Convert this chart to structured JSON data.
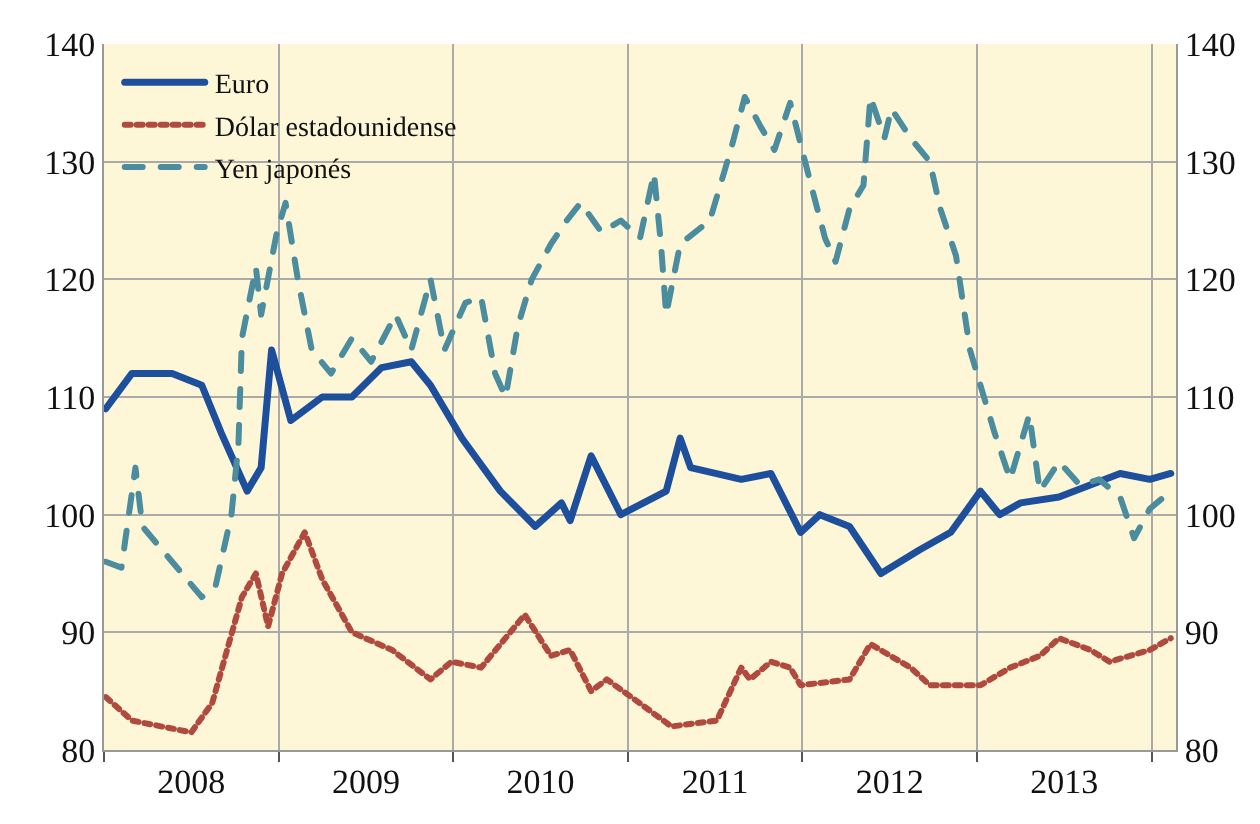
{
  "chart_data": {
    "type": "line",
    "xlim": [
      2008,
      2014.14
    ],
    "xticks": [
      {
        "value": 2008,
        "label": null
      },
      {
        "value": 2008.5,
        "label": "2008"
      },
      {
        "value": 2009,
        "label": null
      },
      {
        "value": 2009.5,
        "label": "2009"
      },
      {
        "value": 2010,
        "label": null
      },
      {
        "value": 2010.5,
        "label": "2010"
      },
      {
        "value": 2011,
        "label": null
      },
      {
        "value": 2011.5,
        "label": "2011"
      },
      {
        "value": 2012,
        "label": null
      },
      {
        "value": 2012.5,
        "label": "2012"
      },
      {
        "value": 2013,
        "label": null
      },
      {
        "value": 2013.5,
        "label": "2013"
      },
      {
        "value": 2014,
        "label": null
      }
    ],
    "ylim": [
      80,
      140
    ],
    "yticks": [
      80,
      90,
      100,
      110,
      120,
      130,
      140
    ],
    "y2lim": [
      80,
      140
    ],
    "y2ticks": [
      80,
      90,
      100,
      110,
      120,
      130,
      140
    ],
    "grid": true,
    "legend": "top left",
    "marker": "none",
    "series": [
      {
        "name": "Euro",
        "color": "#1d4f9c",
        "line_style": "solid",
        "x": [
          2008.01,
          2008.16,
          2008.39,
          2008.56,
          2008.67,
          2008.82,
          2008.9,
          2008.96,
          2009.07,
          2009.25,
          2009.42,
          2009.59,
          2009.76,
          2009.87,
          2010.05,
          2010.27,
          2010.47,
          2010.62,
          2010.67,
          2010.79,
          2010.96,
          2011.22,
          2011.3,
          2011.36,
          2011.65,
          2011.82,
          2011.99,
          2012.1,
          2012.27,
          2012.45,
          2012.67,
          2012.85,
          2013.02,
          2013.13,
          2013.25,
          2013.47,
          2013.82,
          2013.99,
          2014.11
        ],
        "values": [
          109,
          112,
          112,
          111,
          107,
          102,
          104,
          114,
          108,
          110,
          110,
          112.5,
          113,
          111,
          106.5,
          102,
          99,
          101,
          99.5,
          105,
          100,
          102,
          106.5,
          104,
          103,
          103.5,
          98.5,
          100,
          99,
          95,
          97,
          98.5,
          102,
          100,
          101,
          101.5,
          103.5,
          103,
          103.5
        ]
      },
      {
        "name": "Dólar estadounidense",
        "color": "#b04a3e",
        "line_style": "dotted",
        "x": [
          2008.01,
          2008.16,
          2008.5,
          2008.62,
          2008.79,
          2008.87,
          2008.94,
          2009.02,
          2009.15,
          2009.25,
          2009.42,
          2009.65,
          2009.87,
          2009.99,
          2010.16,
          2010.41,
          2010.56,
          2010.67,
          2010.79,
          2010.88,
          2011.02,
          2011.25,
          2011.51,
          2011.65,
          2011.7,
          2011.82,
          2011.93,
          2011.99,
          2012.27,
          2012.39,
          2012.62,
          2012.73,
          2013.02,
          2013.19,
          2013.36,
          2013.47,
          2013.65,
          2013.76,
          2013.99,
          2014.11
        ],
        "values": [
          84.5,
          82.5,
          81.5,
          84,
          93,
          95,
          90.5,
          95,
          98.5,
          94.5,
          90,
          88.5,
          86,
          87.5,
          87,
          91.5,
          88,
          88.5,
          85,
          86,
          84.5,
          82,
          82.5,
          87,
          86,
          87.5,
          87,
          85.5,
          86,
          89,
          87,
          85.5,
          85.5,
          87,
          88,
          89.5,
          88.5,
          87.5,
          88.5,
          89.5
        ]
      },
      {
        "name": "Yen japonés",
        "color": "#4b8d9e",
        "line_style": "dashed",
        "x": [
          2008.01,
          2008.1,
          2008.18,
          2008.22,
          2008.39,
          2008.56,
          2008.64,
          2008.73,
          2008.77,
          2008.79,
          2008.87,
          2008.9,
          2008.99,
          2009.04,
          2009.11,
          2009.19,
          2009.3,
          2009.42,
          2009.53,
          2009.67,
          2009.76,
          2009.87,
          2009.95,
          2010.07,
          2010.16,
          2010.24,
          2010.3,
          2010.37,
          2010.45,
          2010.56,
          2010.65,
          2010.73,
          2010.85,
          2010.96,
          2011.07,
          2011.15,
          2011.19,
          2011.22,
          2011.3,
          2011.47,
          2011.59,
          2011.67,
          2011.76,
          2011.84,
          2011.93,
          2012.05,
          2012.13,
          2012.19,
          2012.27,
          2012.35,
          2012.39,
          2012.47,
          2012.51,
          2012.62,
          2012.73,
          2012.79,
          2012.88,
          2012.96,
          2013.04,
          2013.1,
          2013.19,
          2013.3,
          2013.36,
          2013.47,
          2013.59,
          2013.7,
          2013.82,
          2013.9,
          2013.99,
          2014.07,
          2014.11
        ],
        "values": [
          96,
          95.5,
          104,
          99,
          96,
          93,
          94,
          100,
          106,
          115,
          121,
          117,
          124,
          126.5,
          120,
          114,
          112,
          115,
          113,
          117,
          114,
          120,
          114,
          118,
          118.5,
          112,
          110,
          116,
          120,
          123,
          125,
          126.5,
          124,
          125,
          123.5,
          129,
          123,
          117,
          123,
          125,
          131,
          135.5,
          133,
          131,
          135,
          128,
          123.5,
          121.5,
          126,
          128,
          135.5,
          132,
          134.5,
          132,
          130,
          126,
          122,
          114,
          110,
          107,
          103,
          108.5,
          102,
          104.5,
          102.5,
          103,
          101.5,
          98,
          100.5,
          101.5,
          102
        ]
      }
    ]
  }
}
